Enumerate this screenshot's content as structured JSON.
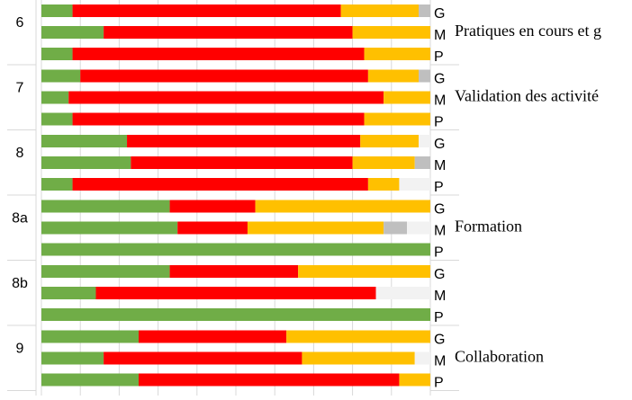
{
  "chart_data": {
    "type": "stacked-barh",
    "xlim": [
      0,
      100
    ],
    "xticks": [
      0,
      10,
      20,
      30,
      40,
      50,
      60,
      70,
      80,
      90,
      100
    ],
    "grid": true,
    "groups": [
      {
        "label": "6",
        "annotation": "Pratiques en cours et g"
      },
      {
        "label": "7",
        "annotation": "Validation des activité"
      },
      {
        "label": "8"
      },
      {
        "label": "8a",
        "annotation": "Formation"
      },
      {
        "label": "8b"
      },
      {
        "label": "9",
        "annotation": "Collaboration"
      }
    ],
    "categories": [
      "G",
      "M",
      "P",
      "G",
      "M",
      "P",
      "G",
      "M",
      "P",
      "G",
      "M",
      "P",
      "G",
      "M",
      "P",
      "G",
      "M",
      "P"
    ],
    "series": [
      {
        "color": "#70ad47",
        "values": [
          8,
          16,
          8,
          10,
          7,
          8,
          22,
          23,
          8,
          33,
          35,
          100,
          33,
          14,
          100,
          25,
          16,
          25
        ]
      },
      {
        "color": "#ff0000",
        "values": [
          69,
          64,
          75,
          74,
          81,
          75,
          60,
          57,
          76,
          22,
          18,
          0,
          33,
          72,
          0,
          38,
          51,
          67
        ]
      },
      {
        "color": "#ffc000",
        "values": [
          20,
          20,
          17,
          13,
          12,
          17,
          15,
          16,
          8,
          45,
          35,
          0,
          34,
          0,
          0,
          37,
          29,
          8
        ]
      },
      {
        "color": "#bfbfbf",
        "values": [
          3,
          0,
          0,
          3,
          0,
          0,
          0,
          4,
          0,
          0,
          6,
          0,
          0,
          0,
          0,
          0,
          0,
          0
        ]
      },
      {
        "color": "#f2f2f2",
        "values": [
          0,
          0,
          0,
          0,
          0,
          0,
          3,
          0,
          8,
          0,
          6,
          0,
          0,
          14,
          0,
          0,
          4,
          0
        ]
      }
    ]
  }
}
